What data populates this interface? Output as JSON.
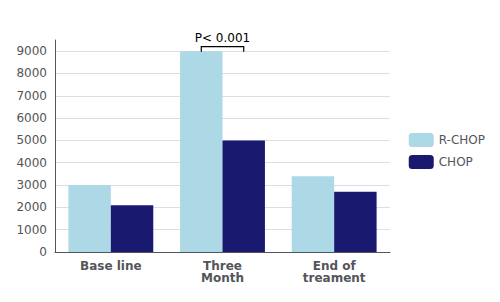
{
  "chart_data": {
    "type": "bar",
    "categories": [
      "Base line",
      "Three\nMonth",
      "End of\ntreament"
    ],
    "series": [
      {
        "name": "R-CHOP",
        "color": "#add8e6",
        "values": [
          3000,
          9000,
          3400
        ]
      },
      {
        "name": "CHOP",
        "color": "#191970",
        "values": [
          2100,
          5000,
          2700
        ]
      }
    ],
    "ylim": [
      0,
      9500
    ],
    "yticks": [
      0,
      1000,
      2000,
      3000,
      4000,
      5000,
      6000,
      7000,
      8000,
      9000
    ],
    "grid": true,
    "legend": "right",
    "annotations": [
      {
        "text": "P< 0.001",
        "category": "Three\nMonth",
        "y": 9200
      }
    ]
  }
}
